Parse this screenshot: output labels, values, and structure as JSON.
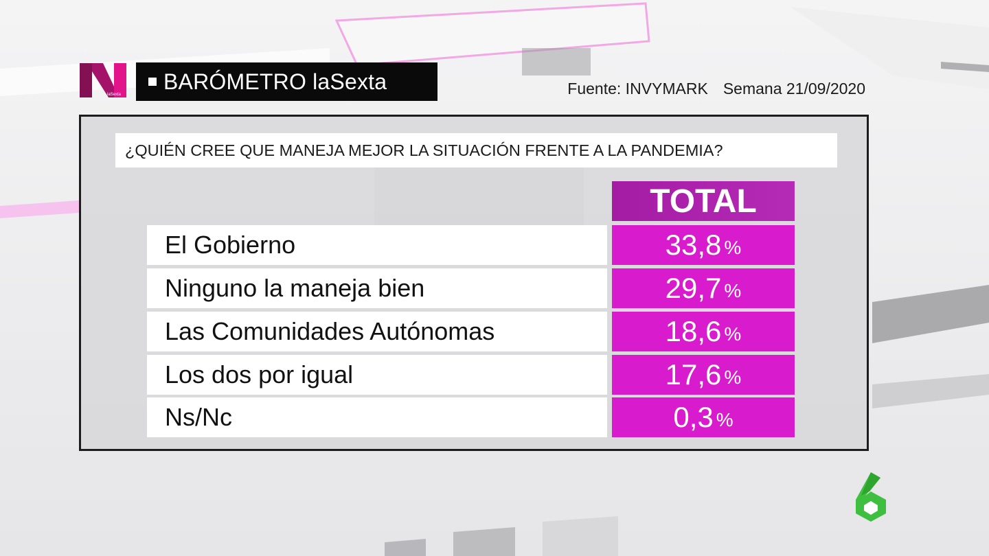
{
  "header": {
    "brand_title": "BARÓMETRO laSexta",
    "logo_sub": "laSexta",
    "source": "Fuente: INVYMARK",
    "week": "Semana 21/09/2020"
  },
  "question": "¿QUIÉN CREE QUE MANEJA MEJOR LA SITUACIÓN FRENTE A LA PANDEMIA?",
  "table": {
    "column_header": "TOTAL",
    "rows": [
      {
        "label": "El Gobierno",
        "value": "33,8",
        "unit": "%"
      },
      {
        "label": "Ninguno la maneja bien",
        "value": "29,7",
        "unit": "%"
      },
      {
        "label": "Las Comunidades Autónomas",
        "value": "18,6",
        "unit": "%"
      },
      {
        "label": "Los dos por igual",
        "value": "17,6",
        "unit": "%"
      },
      {
        "label": "Ns/Nc",
        "value": "0,3",
        "unit": "%"
      }
    ]
  },
  "colors": {
    "accent_magenta": "#d81ccd",
    "header_purple": "#a41ba4",
    "logo_green": "#3fbf3f"
  },
  "icons": {
    "brand_logo": "lasexta-noticias-n-logo",
    "channel_logo": "lasexta-6-logo"
  }
}
